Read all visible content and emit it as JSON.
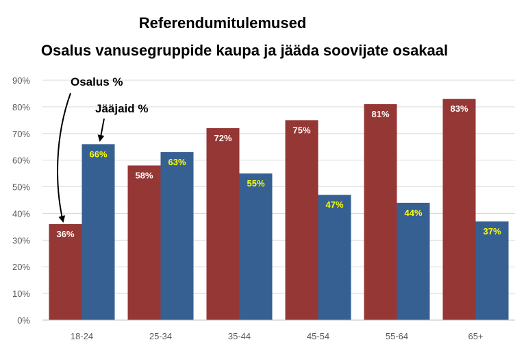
{
  "chart_data": {
    "type": "bar",
    "title": "Referendumitulemused",
    "subtitle": "Osalus vanusegruppide kaupa ja jääda soovijate osakaal",
    "categories": [
      "18-24",
      "25-34",
      "35-44",
      "45-54",
      "55-64",
      "65+"
    ],
    "series": [
      {
        "name": "Osalus",
        "color": "#953735",
        "label_color": "#ffffff",
        "values": [
          36,
          58,
          72,
          75,
          81,
          83
        ],
        "labels": [
          "36%",
          "58%",
          "72%",
          "75%",
          "81%",
          "83%"
        ]
      },
      {
        "name": "Jääjaid",
        "color": "#376092",
        "label_color": "#ffff00",
        "values": [
          66,
          63,
          55,
          47,
          44,
          37
        ],
        "labels": [
          "66%",
          "63%",
          "55%",
          "47%",
          "44%",
          "37%"
        ]
      }
    ],
    "ylim": [
      0,
      90
    ],
    "yticks": [
      "0%",
      "10%",
      "20%",
      "30%",
      "40%",
      "50%",
      "60%",
      "70%",
      "80%",
      "90%"
    ],
    "grid": true,
    "annotations": [
      {
        "text": "Osalus  %",
        "points_to": "Osalus 18-24"
      },
      {
        "text": "Jääjaid %",
        "points_to": "Jääjaid 18-24"
      }
    ]
  }
}
